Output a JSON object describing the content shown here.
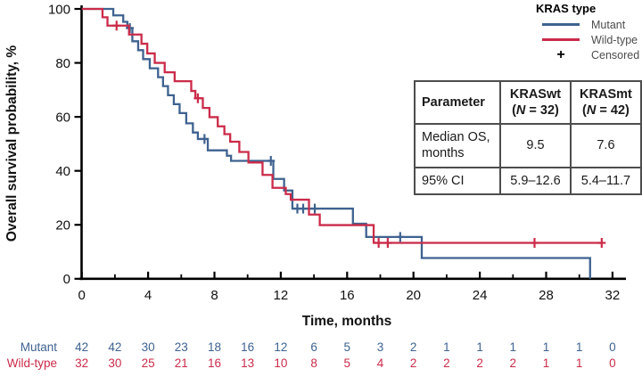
{
  "colors": {
    "mutant_blue": "#3e6290",
    "wildtype_red": "#cb2b49",
    "ink": "#111111",
    "legend_label_gray": "#4c4c4c",
    "table_border": "#4d4d4d"
  },
  "legend": {
    "title": "KRAS type",
    "items": [
      {
        "label": "Mutant",
        "swatch": "line",
        "color_key": "mutant_blue"
      },
      {
        "label": "Wild-type",
        "swatch": "line",
        "color_key": "wildtype_red"
      },
      {
        "label": "Censored",
        "swatch": "plus",
        "color_key": "ink"
      }
    ]
  },
  "stats_table": {
    "header": {
      "col0": "Parameter",
      "col1": {
        "name": "KRASwt",
        "n_open": "(",
        "n_symbol": "N",
        "n_close": " = 32)"
      },
      "col2": {
        "name": "KRASmt",
        "n_open": "(",
        "n_symbol": "N",
        "n_close": " = 42)"
      }
    },
    "rows": [
      {
        "param_line1": "Median OS,",
        "param_line2": "months",
        "kraswt": "9.5",
        "krasmt": "7.6"
      },
      {
        "param_line1": "95% CI",
        "param_line2": "",
        "kraswt": "5.9–12.6",
        "krasmt": "5.4–11.7"
      }
    ]
  },
  "chart_data": {
    "type": "line",
    "subtype": "kaplan-meier-step",
    "title": "",
    "xlabel": "Time, months",
    "ylabel": "Overall survival probability, %",
    "xlim": [
      0,
      33
    ],
    "ylim": [
      0,
      100
    ],
    "xticks": [
      0,
      4,
      8,
      12,
      16,
      20,
      24,
      28,
      32
    ],
    "xminorticks": [
      2,
      6,
      10,
      14,
      18,
      22,
      26,
      30
    ],
    "yticks": [
      0,
      20,
      40,
      60,
      80,
      100
    ],
    "grid": false,
    "legend_position": "top-right",
    "series": [
      {
        "name": "Mutant",
        "color": "#3e6290",
        "n": 42,
        "median_os_months": 7.6,
        "drops_to_zero": true,
        "end_time": 30.65,
        "steps": [
          [
            0,
            100
          ],
          [
            1.9,
            97.6
          ],
          [
            2.5,
            95.2
          ],
          [
            2.75,
            92.9
          ],
          [
            3.05,
            88.0
          ],
          [
            3.4,
            84.7
          ],
          [
            3.7,
            81.4
          ],
          [
            4.1,
            78.0
          ],
          [
            4.6,
            74.7
          ],
          [
            4.9,
            71.4
          ],
          [
            5.2,
            68.0
          ],
          [
            5.55,
            64.7
          ],
          [
            5.9,
            61.4
          ],
          [
            6.3,
            57.6
          ],
          [
            6.7,
            54.2
          ],
          [
            7.0,
            51.8
          ],
          [
            7.6,
            47.6
          ],
          [
            8.75,
            45.6
          ],
          [
            9.0,
            43.7
          ],
          [
            11.55,
            37.0
          ],
          [
            12.2,
            32.7
          ],
          [
            12.7,
            26.0
          ],
          [
            16.35,
            20.4
          ],
          [
            17.15,
            15.5
          ],
          [
            20.5,
            7.7
          ],
          [
            30.65,
            0
          ]
        ],
        "censored": [
          [
            2.9,
            92.9
          ],
          [
            7.4,
            51.8
          ],
          [
            11.4,
            43.7
          ],
          [
            13.0,
            26.0
          ],
          [
            13.35,
            26.0
          ],
          [
            14.05,
            26.0
          ],
          [
            19.2,
            15.5
          ]
        ]
      },
      {
        "name": "Wild-type",
        "color": "#cb2b49",
        "n": 32,
        "median_os_months": 9.5,
        "drops_to_zero": false,
        "end_time": 31.35,
        "steps": [
          [
            0,
            100
          ],
          [
            1.25,
            96.9
          ],
          [
            1.55,
            93.8
          ],
          [
            2.85,
            90.5
          ],
          [
            3.6,
            87.1
          ],
          [
            3.95,
            83.5
          ],
          [
            4.4,
            80.0
          ],
          [
            5.0,
            76.5
          ],
          [
            5.6,
            73.2
          ],
          [
            6.6,
            69.6
          ],
          [
            6.85,
            66.9
          ],
          [
            7.3,
            63.3
          ],
          [
            7.7,
            59.9
          ],
          [
            8.2,
            56.5
          ],
          [
            8.6,
            53.6
          ],
          [
            8.95,
            50.8
          ],
          [
            9.5,
            47.0
          ],
          [
            10.05,
            43.1
          ],
          [
            10.9,
            38.5
          ],
          [
            11.5,
            33.7
          ],
          [
            12.3,
            31.4
          ],
          [
            12.6,
            29.3
          ],
          [
            13.7,
            23.8
          ],
          [
            14.35,
            19.9
          ],
          [
            17.6,
            13.3
          ]
        ],
        "censored": [
          [
            2.1,
            93.8
          ],
          [
            7.0,
            66.9
          ],
          [
            17.9,
            13.3
          ],
          [
            18.45,
            13.3
          ],
          [
            27.3,
            13.3
          ],
          [
            31.35,
            13.3
          ]
        ]
      }
    ],
    "at_risk": {
      "months": [
        0,
        2,
        4,
        6,
        8,
        10,
        12,
        14,
        16,
        18,
        20,
        22,
        24,
        26,
        28,
        30,
        32
      ],
      "rows": [
        {
          "label": "Mutant",
          "color_key": "mutant_blue",
          "values": [
            42,
            42,
            30,
            23,
            18,
            16,
            12,
            6,
            5,
            3,
            2,
            1,
            1,
            1,
            1,
            1,
            0
          ]
        },
        {
          "label": "Wild-type",
          "color_key": "wildtype_red",
          "values": [
            32,
            30,
            25,
            21,
            16,
            13,
            10,
            8,
            5,
            4,
            2,
            2,
            2,
            2,
            1,
            1,
            0
          ]
        }
      ]
    }
  }
}
